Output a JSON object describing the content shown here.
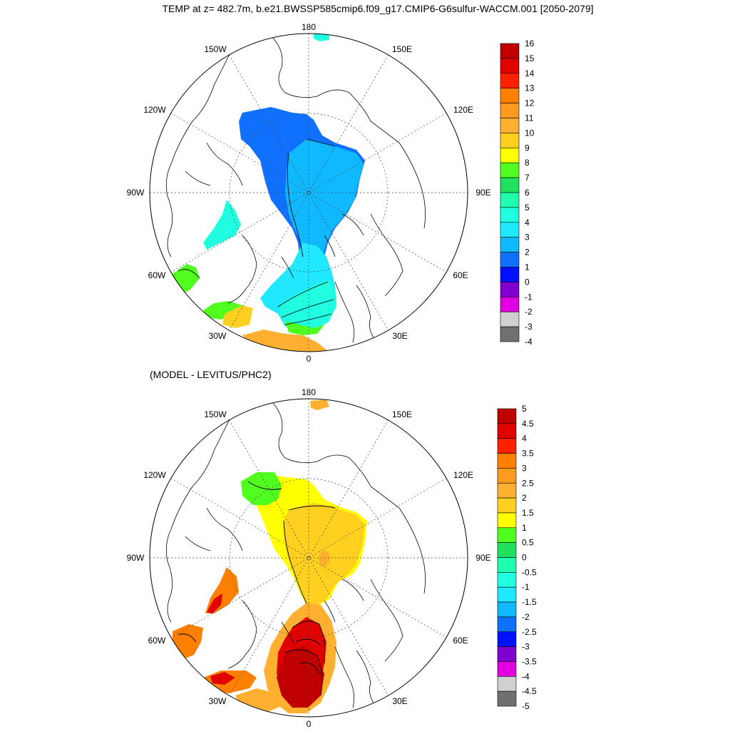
{
  "title": "TEMP at z= 482.7m, b.e21.BWSSP585cmip6.f09_g17.CMIP6-G6sulfur-WACCM.001 [2050-2079]",
  "diff_title": "(MODEL - LEVITUS/PHC2)",
  "lon_labels": {
    "lon_180": "180",
    "lon_150w": "150W",
    "lon_150e": "150E",
    "lon_120w": "120W",
    "lon_120e": "120E",
    "lon_90w": "90W",
    "lon_90e": "90E",
    "lon_60w": "60W",
    "lon_60e": "60E",
    "lon_30w": "30W",
    "lon_30e": "30E",
    "lon_0": "0"
  },
  "legend_top": {
    "labels": [
      "16",
      "15",
      "14",
      "13",
      "12",
      "11",
      "10",
      "9",
      "8",
      "7",
      "6",
      "5",
      "4",
      "3",
      "2",
      "1",
      "0",
      "-1",
      "-2",
      "-3",
      "-4"
    ],
    "colors": [
      "#c00000",
      "#e00000",
      "#ff2000",
      "#ff8000",
      "#ff9a20",
      "#ffb030",
      "#ffd020",
      "#ffff00",
      "#50ff20",
      "#20e060",
      "#20ffb0",
      "#20ffe0",
      "#20e8ff",
      "#10b8ff",
      "#1070ff",
      "#0010ff",
      "#8000d0",
      "#e000e0",
      "#d0d0d0",
      "#707070"
    ]
  },
  "legend_bottom": {
    "labels": [
      "5",
      "4.5",
      "4",
      "3.5",
      "3",
      "2.5",
      "2",
      "1.5",
      "1",
      "0.5",
      "0",
      "-0.5",
      "-1",
      "-1.5",
      "-2",
      "-2.5",
      "-3",
      "-3.5",
      "-4",
      "-4.5",
      "-5"
    ],
    "colors": [
      "#c00000",
      "#e00000",
      "#ff2000",
      "#ff8000",
      "#ff9a20",
      "#ffb030",
      "#ffd020",
      "#ffff00",
      "#50ff20",
      "#20e060",
      "#20ffb0",
      "#20ffe0",
      "#20e8ff",
      "#10b8ff",
      "#1070ff",
      "#0010ff",
      "#8000d0",
      "#e000e0",
      "#d0d0d0",
      "#707070"
    ]
  },
  "map_colors": {
    "top_main": "#1070ff",
    "top_light": "#10b8ff",
    "top_cyan": "#20e8ff",
    "top_teal": "#20ffe0",
    "top_green": "#50ff20",
    "top_orange": "#ffb030",
    "top_yellow": "#ffd020",
    "bot_yellow": "#ffff00",
    "bot_gold": "#ffd020",
    "bot_amber": "#ffb030",
    "bot_green": "#50ff20",
    "bot_orange": "#ff8000",
    "bot_red": "#e00000",
    "bot_darkred": "#c00000"
  }
}
